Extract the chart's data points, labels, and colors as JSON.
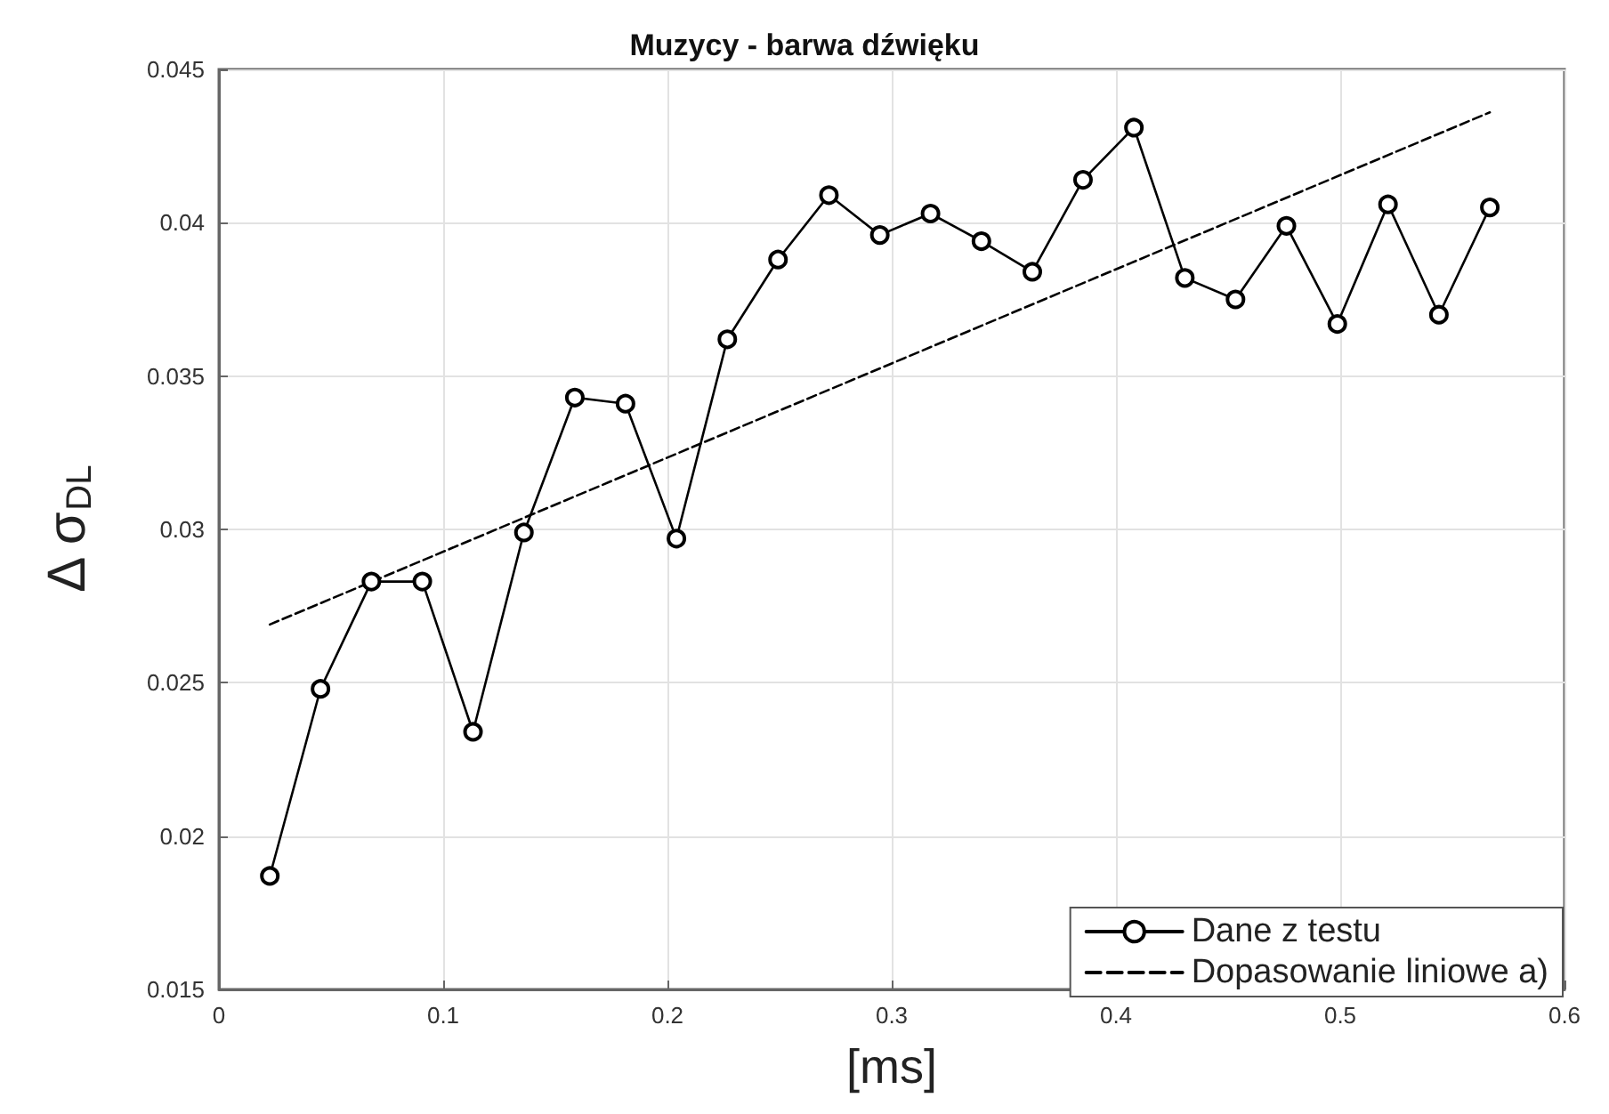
{
  "chart_data": {
    "type": "line",
    "title": "Muzycy - barwa dźwięku",
    "xlabel": "[ms]",
    "ylabel": "Δ σ$_{DL}$",
    "xlim": [
      0,
      0.6
    ],
    "xticks": [
      0,
      0.1,
      0.2,
      0.3,
      0.4,
      0.5,
      0.6
    ],
    "ylim": [
      0.015,
      0.045
    ],
    "yticks": [
      0.015,
      0.02,
      0.025,
      0.03,
      0.035,
      0.04,
      0.045
    ],
    "grid": true,
    "legend": "bottom right",
    "series": [
      {
        "name": "Dane z testu",
        "color": "#000000",
        "marker": "circle",
        "line_style": "solid",
        "x": [
          0.0227,
          0.0453,
          0.068,
          0.0907,
          0.1133,
          0.136,
          0.1587,
          0.1813,
          0.204,
          0.2267,
          0.2493,
          0.272,
          0.2947,
          0.3173,
          0.34,
          0.3627,
          0.3853,
          0.408,
          0.4307,
          0.4533,
          0.476,
          0.4987,
          0.5213,
          0.544,
          0.5667
        ],
        "values": [
          0.0187,
          0.0248,
          0.0283,
          0.0283,
          0.0234,
          0.0299,
          0.0343,
          0.0341,
          0.0297,
          0.0362,
          0.0388,
          0.0409,
          0.0396,
          0.0403,
          0.0394,
          0.0384,
          0.0414,
          0.0431,
          0.0382,
          0.0375,
          0.0399,
          0.0367,
          0.0406,
          0.037,
          0.0405
        ]
      },
      {
        "name": "Dopasowanie liniowe a)",
        "color": "#000000",
        "marker": "none",
        "line_style": "dashed",
        "x": [
          0.0227,
          0.5667
        ],
        "values": [
          0.0269,
          0.0436
        ]
      }
    ]
  }
}
